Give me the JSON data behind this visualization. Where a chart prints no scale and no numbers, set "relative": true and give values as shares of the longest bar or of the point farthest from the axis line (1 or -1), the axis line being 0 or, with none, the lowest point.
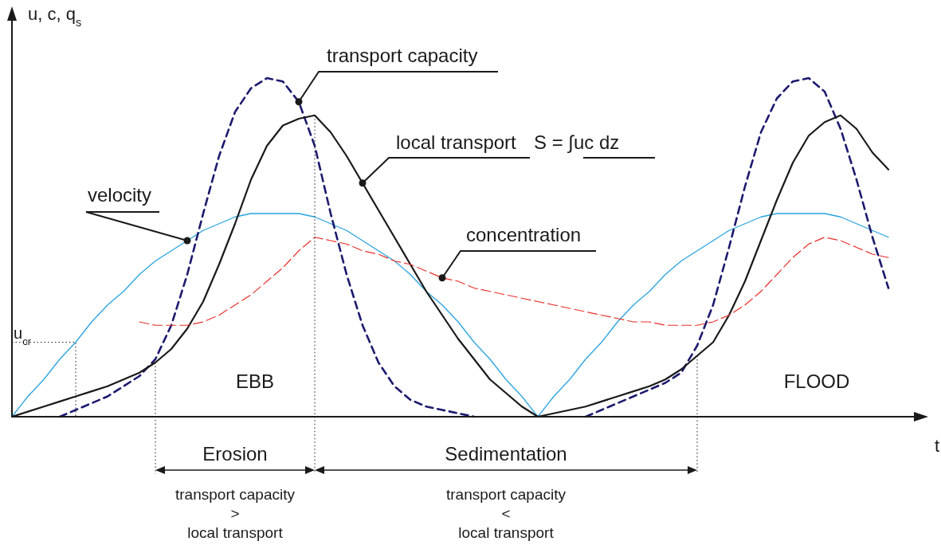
{
  "chart_data": {
    "type": "line",
    "relative": true,
    "xlabel": "t",
    "ylabel": "u, c, q$_{s}$",
    "categories": [
      null,
      null,
      null,
      null,
      null,
      null,
      null,
      null,
      null,
      null,
      null,
      null,
      null,
      null,
      null,
      null,
      null,
      null,
      null,
      null,
      null,
      null,
      null,
      null,
      null,
      null,
      null,
      null,
      null,
      null,
      null,
      null,
      null,
      null,
      null,
      null,
      null,
      null,
      null,
      null,
      null,
      null,
      null,
      null,
      null,
      null,
      null,
      null,
      null,
      null,
      null,
      null,
      null,
      null,
      null,
      null
    ],
    "series": [
      {
        "name": "velocity",
        "color": "#29a3e0",
        "line_style": "solid",
        "values": [
          0,
          0.06,
          0.11,
          0.17,
          0.22,
          0.28,
          0.33,
          0.37,
          0.42,
          0.46,
          0.49,
          0.52,
          0.55,
          0.57,
          0.59,
          0.6,
          0.6,
          0.6,
          0.6,
          0.59,
          0.57,
          0.55,
          0.52,
          0.49,
          0.46,
          0.42,
          0.37,
          0.33,
          0.28,
          0.22,
          0.17,
          0.11,
          0.06,
          0,
          0.06,
          0.11,
          0.17,
          0.22,
          0.28,
          0.33,
          0.37,
          0.42,
          0.46,
          0.49,
          0.52,
          0.55,
          0.57,
          0.59,
          0.6,
          0.6,
          0.6,
          0.6,
          0.59,
          0.57,
          0.55,
          0.53
        ]
      },
      {
        "name": "transport capacity",
        "color": "#1c1a6e",
        "line_style": "dashed",
        "values": [
          null,
          null,
          null,
          0,
          0.02,
          0.04,
          0.06,
          0.09,
          0.12,
          0.17,
          0.27,
          0.42,
          0.6,
          0.77,
          0.9,
          0.97,
          1,
          0.99,
          0.93,
          0.8,
          0.6,
          0.42,
          0.27,
          0.16,
          0.09,
          0.05,
          0.03,
          0.02,
          0.01,
          0,
          null,
          null,
          null,
          null,
          null,
          null,
          0,
          0.02,
          0.04,
          0.06,
          0.08,
          0.1,
          0.13,
          0.21,
          0.33,
          0.5,
          0.68,
          0.84,
          0.94,
          0.99,
          1,
          0.96,
          0.85,
          0.7,
          0.53,
          0.38
        ]
      },
      {
        "name": "local transport",
        "color": "#1a1a1a",
        "line_style": "solid",
        "values": [
          0,
          0.015,
          0.03,
          0.045,
          0.06,
          0.075,
          0.09,
          0.11,
          0.13,
          0.16,
          0.2,
          0.26,
          0.34,
          0.45,
          0.57,
          0.7,
          0.8,
          0.86,
          0.88,
          0.89,
          0.84,
          0.77,
          0.69,
          0.61,
          0.53,
          0.45,
          0.37,
          0.3,
          0.23,
          0.17,
          0.11,
          0.07,
          0.03,
          0,
          0.01,
          0.02,
          0.03,
          0.045,
          0.06,
          0.075,
          0.09,
          0.11,
          0.14,
          0.18,
          0.22,
          0.3,
          0.4,
          0.52,
          0.64,
          0.75,
          0.83,
          0.87,
          0.89,
          0.85,
          0.78,
          0.73
        ]
      },
      {
        "name": "concentration",
        "color": "#e8302a",
        "line_style": "dashed",
        "values": [
          null,
          null,
          null,
          null,
          null,
          null,
          null,
          null,
          0.28,
          0.27,
          0.27,
          0.27,
          0.28,
          0.3,
          0.33,
          0.36,
          0.4,
          0.44,
          0.49,
          0.53,
          0.52,
          0.51,
          0.49,
          0.48,
          0.46,
          0.45,
          0.43,
          0.41,
          0.4,
          0.38,
          0.37,
          0.36,
          0.35,
          0.34,
          0.33,
          0.32,
          0.31,
          0.3,
          0.29,
          0.28,
          0.28,
          0.27,
          0.27,
          0.27,
          0.28,
          0.3,
          0.33,
          0.37,
          0.42,
          0.47,
          0.51,
          0.53,
          0.52,
          0.5,
          0.48,
          0.47
        ]
      }
    ],
    "ref_lines": [
      {
        "axis": "y",
        "value": 0.22,
        "label": "u$_{cr}$",
        "line_style": "dotted"
      }
    ],
    "annotations": [
      "S = ∫uc dz",
      "EBB",
      "FLOOD",
      "Erosion",
      "Sedimentation",
      "transport capacity\n>\nlocal transport",
      "transport capacity\n<\nlocal transport"
    ]
  }
}
